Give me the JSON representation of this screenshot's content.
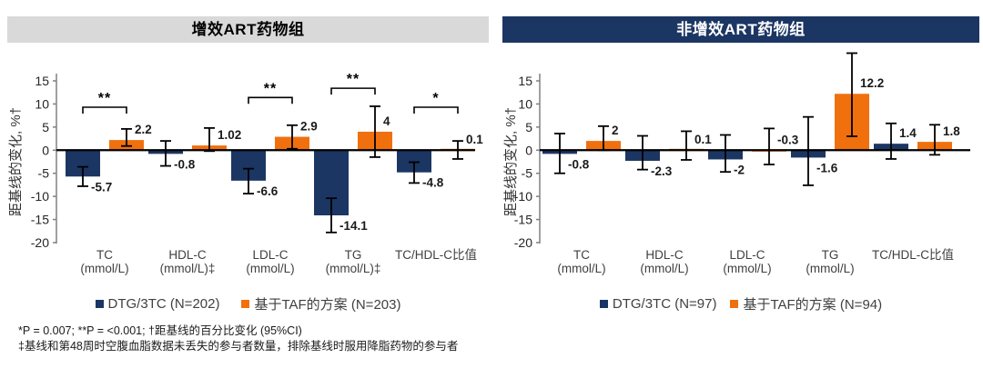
{
  "panels": [
    {
      "header": {
        "label": "增效ART药物组",
        "bg": "#D9D9D9",
        "color": "#000000"
      }
    },
    {
      "header": {
        "label": "非增效ART药物组",
        "bg": "#1C3663",
        "color": "#FFFFFF"
      }
    }
  ],
  "colors": {
    "navy": "#1C3663",
    "orange": "#F1700E",
    "axis_gray": "#808080",
    "error_bar": "#000000"
  },
  "chart_data": [
    {
      "type": "bar",
      "title": "增效ART药物组",
      "ylabel": "距基线的变化, %†",
      "ylim": [
        -20,
        15
      ],
      "yticks": [
        15,
        10,
        5,
        0,
        -5,
        -10,
        -15,
        -20
      ],
      "grid": false,
      "legend_position": "bottom",
      "categories": [
        [
          "TC",
          "(mmol/L)"
        ],
        [
          "HDL-C",
          "(mmol/L)‡"
        ],
        [
          "LDL-C",
          "(mmol/L)"
        ],
        [
          "TG",
          "(mmol/L)‡"
        ],
        [
          "TC/HDL-C比值",
          ""
        ]
      ],
      "series": [
        {
          "name": "DTG/3TC (N=202)",
          "color": "#1C3663",
          "values": [
            -5.7,
            -0.8,
            -6.6,
            -14.1,
            -4.8
          ],
          "labels": [
            "-5.7",
            "-0.8",
            "-6.6",
            "-14.1",
            "-4.8"
          ],
          "ci": [
            [
              -7.8,
              -3.6
            ],
            [
              -3.4,
              2.0
            ],
            [
              -9.4,
              -4.0
            ],
            [
              -17.8,
              -10.4
            ],
            [
              -7.1,
              -2.6
            ]
          ],
          "labels_above_indices": []
        },
        {
          "name": "基于TAF的方案 (N=203)",
          "color": "#F1700E",
          "values": [
            2.2,
            1.02,
            2.9,
            4,
            0.1
          ],
          "labels": [
            "2.2",
            "1.02",
            "2.9",
            "4",
            "0.1"
          ],
          "ci": [
            [
              0.9,
              4.6
            ],
            [
              -0.2,
              4.8
            ],
            [
              0.3,
              5.4
            ],
            [
              -1.5,
              9.5
            ],
            [
              -1.9,
              2.0
            ]
          ],
          "labels_above_indices": []
        }
      ],
      "sig_brackets": [
        {
          "category_index": 0,
          "label": "**",
          "y": 9.3
        },
        {
          "category_index": 2,
          "label": "**",
          "y": 11.4
        },
        {
          "category_index": 3,
          "label": "**",
          "y": 13.4
        },
        {
          "category_index": 4,
          "label": "*",
          "y": 9.3
        }
      ]
    },
    {
      "type": "bar",
      "title": "非增效ART药物组",
      "ylabel": "距基线的变化, %†",
      "ylim": [
        -20,
        15
      ],
      "yticks": [
        15,
        10,
        5,
        0,
        -5,
        -10,
        -15,
        -20
      ],
      "grid": false,
      "legend_position": "bottom",
      "categories": [
        [
          "TC",
          "(mmol/L)"
        ],
        [
          "HDL-C",
          "(mmol/L)"
        ],
        [
          "LDL-C",
          "(mmol/L)"
        ],
        [
          "TG",
          "(mmol/L)"
        ],
        [
          "TC/HDL-C比值",
          ""
        ]
      ],
      "series": [
        {
          "name": "DTG/3TC (N=97)",
          "color": "#1C3663",
          "values": [
            -0.8,
            -2.3,
            -2,
            -1.6,
            1.4
          ],
          "labels": [
            "-0.8",
            "-2.3",
            "-2",
            "-1.6",
            "1.4"
          ],
          "ci": [
            [
              -5.0,
              3.6
            ],
            [
              -4.2,
              3.1
            ],
            [
              -4.7,
              3.3
            ],
            [
              -7.6,
              7.2
            ],
            [
              -1.9,
              5.8
            ]
          ],
          "labels_above_indices": []
        },
        {
          "name": "基于TAF的方案 (N=94)",
          "color": "#F1700E",
          "values": [
            2,
            0.1,
            -0.3,
            12.2,
            1.8
          ],
          "labels": [
            "2",
            "0.1",
            "-0.3",
            "12.2",
            "1.8"
          ],
          "ci": [
            [
              0.0,
              5.2
            ],
            [
              -2.1,
              4.1
            ],
            [
              -3.1,
              4.7
            ],
            [
              3.0,
              21.0
            ],
            [
              -1.0,
              5.5
            ]
          ],
          "labels_above_indices": [
            2
          ]
        }
      ],
      "sig_brackets": []
    }
  ],
  "footnotes": [
    "*P = 0.007; **P = <0.001; †距基线的百分比变化 (95%CI)",
    "‡基线和第48周时空腹血脂数据未丢失的参与者数量，排除基线时服用降脂药物的参与者"
  ]
}
